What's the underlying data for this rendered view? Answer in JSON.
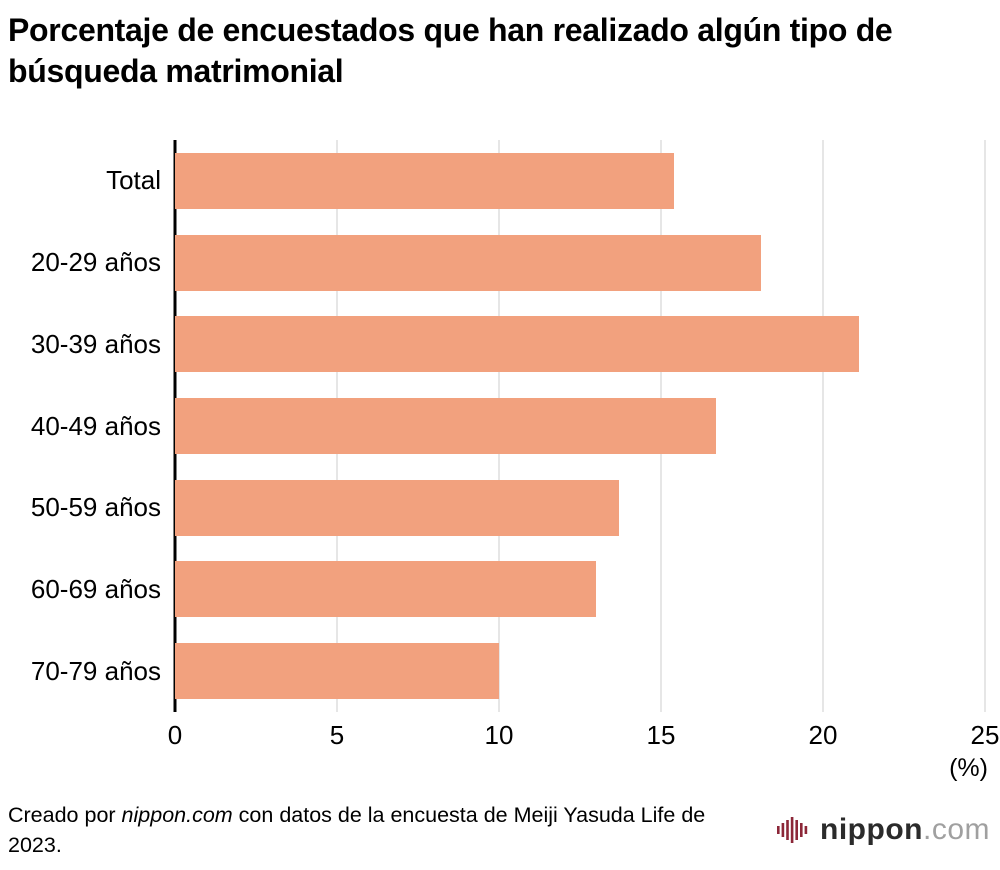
{
  "title": "Porcentaje de encuestados que han realizado algún tipo de búsqueda matrimonial",
  "chart_data": {
    "type": "bar",
    "orientation": "horizontal",
    "categories": [
      "Total",
      "20-29 años",
      "30-39 años",
      "40-49 años",
      "50-59 años",
      "60-69 años",
      "70-79 años"
    ],
    "values": [
      15.4,
      18.1,
      21.1,
      16.7,
      13.7,
      13.0,
      10.0
    ],
    "xlim": [
      0,
      25
    ],
    "xticks": [
      0,
      5,
      10,
      15,
      20,
      25
    ],
    "xlabel": "(%)",
    "bar_color": "#F2A17E",
    "gridline_color": "#cccccc",
    "axis_color": "#000000",
    "grid": true,
    "legend": "none"
  },
  "footer": {
    "credit_prefix": "Creado por ",
    "credit_source": "nippon.com",
    "credit_suffix": " con datos de la encuesta de Meiji Yasuda Life de 2023.",
    "logo": {
      "text_main": "nippon",
      "text_suffix": ".com",
      "icon": "soundwave-bars-icon",
      "icon_color": "#8c2738"
    }
  }
}
